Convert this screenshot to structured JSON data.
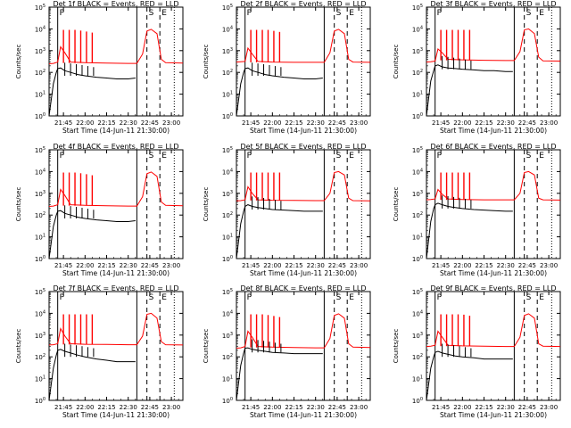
{
  "figure": {
    "ylabel": "Counts/sec",
    "xlabel": "Start Time (14-Jun-11 21:30:00)",
    "xticks": [
      "21:45",
      "22:00",
      "22:15",
      "22:30",
      "22:45",
      "23:00"
    ],
    "ytick_exponents": [
      "0",
      "1",
      "2",
      "3",
      "4",
      "5"
    ],
    "ytick_base": "10",
    "marker_labels": {
      "p": "P",
      "s": "S",
      "e": "E"
    },
    "colors": {
      "events": "#000000",
      "lld": "#ff0000",
      "background": "#ffffff"
    }
  },
  "chart_data": [
    {
      "type": "line",
      "title": "Det 1f BLACK = Events, RED = LLD",
      "ylabel": "Counts/sec",
      "xlabel": "Start Time (14-Jun-11 21:30:00)",
      "y_scale": "log",
      "ylim": [
        1,
        100000
      ],
      "xlim": [
        "21:35",
        "23:08"
      ],
      "markers": {
        "P": "21:41",
        "S": "22:43",
        "E": "22:52",
        "solid_line": "22:36",
        "dotted_line": "23:02"
      },
      "series": [
        {
          "name": "Events",
          "color": "black",
          "x": [
            "21:35",
            "21:38",
            "21:40",
            "21:41",
            "21:43",
            "21:46",
            "21:50",
            "21:55",
            "22:00",
            "22:08",
            "22:15",
            "22:22",
            "22:30",
            "22:35"
          ],
          "y": [
            1,
            30,
            100,
            150,
            160,
            120,
            100,
            80,
            70,
            60,
            55,
            50,
            50,
            55
          ]
        },
        {
          "name": "LLD",
          "color": "red",
          "x": [
            "21:35",
            "21:38",
            "21:41",
            "21:43",
            "21:46",
            "21:50",
            "22:00",
            "22:15",
            "22:30",
            "22:36",
            "22:40",
            "22:43",
            "22:46",
            "22:50",
            "22:53",
            "22:56",
            "23:08"
          ],
          "y": [
            250,
            260,
            300,
            1500,
            800,
            300,
            280,
            270,
            260,
            260,
            700,
            8000,
            9500,
            6000,
            400,
            280,
            270
          ]
        }
      ]
    },
    {
      "type": "line",
      "title": "Det 2f BLACK = Events, RED = LLD",
      "ylabel": "Counts/sec",
      "xlabel": "Start Time (14-Jun-11 21:30:00)",
      "y_scale": "log",
      "ylim": [
        1,
        100000
      ],
      "xlim": [
        "21:35",
        "23:08"
      ],
      "markers": {
        "P": "21:41",
        "S": "22:43",
        "E": "22:52",
        "solid_line": "22:36",
        "dotted_line": "23:02"
      },
      "series": [
        {
          "name": "Events",
          "color": "black",
          "x": [
            "21:35",
            "21:38",
            "21:40",
            "21:41",
            "21:43",
            "21:46",
            "21:50",
            "21:55",
            "22:00",
            "22:08",
            "22:15",
            "22:22",
            "22:30",
            "22:35"
          ],
          "y": [
            1,
            30,
            100,
            150,
            160,
            120,
            100,
            80,
            70,
            60,
            55,
            50,
            50,
            55
          ]
        },
        {
          "name": "LLD",
          "color": "red",
          "x": [
            "21:35",
            "21:38",
            "21:41",
            "21:43",
            "21:46",
            "21:50",
            "22:00",
            "22:15",
            "22:30",
            "22:36",
            "22:40",
            "22:43",
            "22:46",
            "22:50",
            "22:53",
            "22:56",
            "23:08"
          ],
          "y": [
            300,
            310,
            320,
            1300,
            700,
            320,
            300,
            290,
            290,
            290,
            800,
            8000,
            9500,
            6000,
            400,
            300,
            290
          ]
        }
      ]
    },
    {
      "type": "line",
      "title": "Det 3f BLACK = Events, RED = LLD",
      "ylabel": "Counts/sec",
      "xlabel": "Start Time (14-Jun-11 21:30:00)",
      "y_scale": "log",
      "ylim": [
        1,
        100000
      ],
      "xlim": [
        "21:35",
        "23:08"
      ],
      "markers": {
        "P": "21:41",
        "S": "22:43",
        "E": "22:52",
        "solid_line": "22:36",
        "dotted_line": "23:02"
      },
      "series": [
        {
          "name": "Events",
          "color": "black",
          "x": [
            "21:35",
            "21:38",
            "21:40",
            "21:41",
            "21:43",
            "21:46",
            "21:50",
            "21:55",
            "22:00",
            "22:08",
            "22:15",
            "22:22",
            "22:30",
            "22:35"
          ],
          "y": [
            1,
            40,
            120,
            200,
            220,
            180,
            160,
            150,
            140,
            130,
            120,
            120,
            110,
            110
          ]
        },
        {
          "name": "LLD",
          "color": "red",
          "x": [
            "21:35",
            "21:38",
            "21:41",
            "21:43",
            "21:46",
            "21:50",
            "22:00",
            "22:15",
            "22:30",
            "22:36",
            "22:40",
            "22:43",
            "22:46",
            "22:50",
            "22:53",
            "22:56",
            "23:08"
          ],
          "y": [
            300,
            310,
            330,
            1200,
            800,
            400,
            380,
            360,
            350,
            350,
            900,
            9000,
            10000,
            6000,
            500,
            340,
            330
          ]
        }
      ]
    },
    {
      "type": "line",
      "title": "Det 4f BLACK = Events, RED = LLD",
      "ylabel": "Counts/sec",
      "xlabel": "Start Time (14-Jun-11 21:30:00)",
      "y_scale": "log",
      "ylim": [
        1,
        100000
      ],
      "xlim": [
        "21:35",
        "23:08"
      ],
      "markers": {
        "P": "21:41",
        "S": "22:43",
        "E": "22:52",
        "solid_line": "22:36",
        "dotted_line": "23:02"
      },
      "series": [
        {
          "name": "Events",
          "color": "black",
          "x": [
            "21:35",
            "21:38",
            "21:40",
            "21:41",
            "21:43",
            "21:46",
            "21:50",
            "21:55",
            "22:00",
            "22:08",
            "22:15",
            "22:22",
            "22:30",
            "22:35"
          ],
          "y": [
            1,
            30,
            100,
            150,
            160,
            120,
            100,
            80,
            70,
            60,
            55,
            50,
            50,
            55
          ]
        },
        {
          "name": "LLD",
          "color": "red",
          "x": [
            "21:35",
            "21:38",
            "21:41",
            "21:43",
            "21:46",
            "21:50",
            "22:00",
            "22:15",
            "22:30",
            "22:36",
            "22:40",
            "22:43",
            "22:46",
            "22:50",
            "22:53",
            "22:56",
            "23:08"
          ],
          "y": [
            250,
            260,
            300,
            1500,
            800,
            300,
            280,
            270,
            260,
            260,
            700,
            8000,
            9500,
            6000,
            400,
            280,
            270
          ]
        }
      ]
    },
    {
      "type": "line",
      "title": "Det 5f BLACK = Events, RED = LLD",
      "ylabel": "Counts/sec",
      "xlabel": "Start Time (14-Jun-11 21:30:00)",
      "y_scale": "log",
      "ylim": [
        1,
        100000
      ],
      "xlim": [
        "21:35",
        "23:08"
      ],
      "markers": {
        "P": "21:41",
        "S": "22:43",
        "E": "22:52",
        "solid_line": "22:36",
        "dotted_line": "23:02"
      },
      "series": [
        {
          "name": "Events",
          "color": "black",
          "x": [
            "21:35",
            "21:38",
            "21:40",
            "21:41",
            "21:43",
            "21:46",
            "21:50",
            "21:55",
            "22:00",
            "22:08",
            "22:15",
            "22:22",
            "22:30",
            "22:35"
          ],
          "y": [
            1,
            40,
            150,
            250,
            300,
            250,
            220,
            200,
            180,
            170,
            160,
            150,
            150,
            150
          ]
        },
        {
          "name": "LLD",
          "color": "red",
          "x": [
            "21:35",
            "21:38",
            "21:41",
            "21:43",
            "21:46",
            "21:50",
            "22:00",
            "22:15",
            "22:30",
            "22:36",
            "22:40",
            "22:43",
            "22:46",
            "22:50",
            "22:53",
            "22:56",
            "23:08"
          ],
          "y": [
            450,
            460,
            500,
            2000,
            1000,
            500,
            480,
            470,
            460,
            460,
            1000,
            9000,
            10000,
            7000,
            600,
            460,
            450
          ]
        }
      ]
    },
    {
      "type": "line",
      "title": "Det 6f BLACK = Events, RED = LLD",
      "ylabel": "Counts/sec",
      "xlabel": "Start Time (14-Jun-11 21:30:00)",
      "y_scale": "log",
      "ylim": [
        1,
        100000
      ],
      "xlim": [
        "21:35",
        "23:08"
      ],
      "markers": {
        "P": "21:41",
        "S": "22:43",
        "E": "22:52",
        "solid_line": "22:36",
        "dotted_line": "23:02"
      },
      "series": [
        {
          "name": "Events",
          "color": "black",
          "x": [
            "21:35",
            "21:38",
            "21:40",
            "21:41",
            "21:43",
            "21:46",
            "21:50",
            "21:55",
            "22:00",
            "22:08",
            "22:15",
            "22:22",
            "22:30",
            "22:35"
          ],
          "y": [
            1,
            50,
            200,
            300,
            350,
            300,
            250,
            220,
            200,
            180,
            170,
            160,
            150,
            150
          ]
        },
        {
          "name": "LLD",
          "color": "red",
          "x": [
            "21:35",
            "21:38",
            "21:41",
            "21:43",
            "21:46",
            "21:50",
            "22:00",
            "22:15",
            "22:30",
            "22:36",
            "22:40",
            "22:43",
            "22:46",
            "22:50",
            "22:53",
            "22:56",
            "23:08"
          ],
          "y": [
            500,
            520,
            550,
            1500,
            900,
            550,
            520,
            500,
            500,
            500,
            1000,
            9000,
            10000,
            7000,
            600,
            500,
            490
          ]
        }
      ]
    },
    {
      "type": "line",
      "title": "Det 7f BLACK = Events, RED = LLD",
      "ylabel": "Counts/sec",
      "xlabel": "Start Time (14-Jun-11 21:30:00)",
      "y_scale": "log",
      "ylim": [
        1,
        100000
      ],
      "xlim": [
        "21:35",
        "23:08"
      ],
      "markers": {
        "P": "21:41",
        "S": "22:43",
        "E": "22:52",
        "solid_line": "22:36",
        "dotted_line": "23:02"
      },
      "series": [
        {
          "name": "Events",
          "color": "black",
          "x": [
            "21:35",
            "21:38",
            "21:40",
            "21:41",
            "21:43",
            "21:46",
            "21:50",
            "21:55",
            "22:00",
            "22:08",
            "22:15",
            "22:22",
            "22:30",
            "22:35"
          ],
          "y": [
            1,
            30,
            120,
            200,
            220,
            180,
            150,
            120,
            100,
            80,
            70,
            60,
            60,
            60
          ]
        },
        {
          "name": "LLD",
          "color": "red",
          "x": [
            "21:35",
            "21:38",
            "21:41",
            "21:43",
            "21:46",
            "21:50",
            "22:00",
            "22:15",
            "22:30",
            "22:36",
            "22:40",
            "22:43",
            "22:46",
            "22:50",
            "22:53",
            "22:56",
            "23:08"
          ],
          "y": [
            350,
            360,
            400,
            2000,
            900,
            400,
            380,
            370,
            360,
            360,
            900,
            9000,
            10000,
            6000,
            500,
            360,
            350
          ]
        }
      ]
    },
    {
      "type": "line",
      "title": "Det 8f BLACK = Events, RED = LLD",
      "ylabel": "Counts/sec",
      "xlabel": "Start Time (14-Jun-11 21:30:00)",
      "y_scale": "log",
      "ylim": [
        1,
        100000
      ],
      "xlim": [
        "21:35",
        "23:08"
      ],
      "markers": {
        "P": "21:41",
        "S": "22:43",
        "E": "22:52",
        "solid_line": "22:36",
        "dotted_line": "23:02"
      },
      "series": [
        {
          "name": "Events",
          "color": "black",
          "x": [
            "21:35",
            "21:38",
            "21:40",
            "21:41",
            "21:43",
            "21:46",
            "21:50",
            "21:55",
            "22:00",
            "22:08",
            "22:15",
            "22:22",
            "22:30",
            "22:35"
          ],
          "y": [
            1,
            40,
            150,
            250,
            260,
            220,
            200,
            180,
            160,
            150,
            140,
            140,
            140,
            140
          ]
        },
        {
          "name": "LLD",
          "color": "red",
          "x": [
            "21:35",
            "21:38",
            "21:41",
            "21:43",
            "21:46",
            "21:50",
            "22:00",
            "22:15",
            "22:30",
            "22:36",
            "22:40",
            "22:43",
            "22:46",
            "22:50",
            "22:53",
            "22:56",
            "23:08"
          ],
          "y": [
            250,
            260,
            300,
            1500,
            800,
            300,
            280,
            270,
            260,
            260,
            700,
            8000,
            9500,
            6000,
            400,
            280,
            270
          ]
        }
      ]
    },
    {
      "type": "line",
      "title": "Det 9f BLACK = Events, RED = LLD",
      "ylabel": "Counts/sec",
      "xlabel": "Start Time (14-Jun-11 21:30:00)",
      "y_scale": "log",
      "ylim": [
        1,
        100000
      ],
      "xlim": [
        "21:35",
        "23:08"
      ],
      "markers": {
        "P": "21:41",
        "S": "22:43",
        "E": "22:52",
        "solid_line": "22:36",
        "dotted_line": "23:02"
      },
      "series": [
        {
          "name": "Events",
          "color": "black",
          "x": [
            "21:35",
            "21:38",
            "21:40",
            "21:41",
            "21:43",
            "21:46",
            "21:50",
            "21:55",
            "22:00",
            "22:08",
            "22:15",
            "22:22",
            "22:30",
            "22:35"
          ],
          "y": [
            1,
            30,
            100,
            160,
            180,
            150,
            130,
            110,
            100,
            90,
            80,
            80,
            80,
            80
          ]
        },
        {
          "name": "LLD",
          "color": "red",
          "x": [
            "21:35",
            "21:38",
            "21:41",
            "21:43",
            "21:46",
            "21:50",
            "22:00",
            "22:15",
            "22:30",
            "22:36",
            "22:40",
            "22:43",
            "22:46",
            "22:50",
            "22:53",
            "22:56",
            "23:08"
          ],
          "y": [
            300,
            310,
            340,
            1500,
            800,
            340,
            320,
            310,
            300,
            300,
            800,
            8000,
            9500,
            6000,
            400,
            310,
            300
          ]
        }
      ]
    }
  ]
}
